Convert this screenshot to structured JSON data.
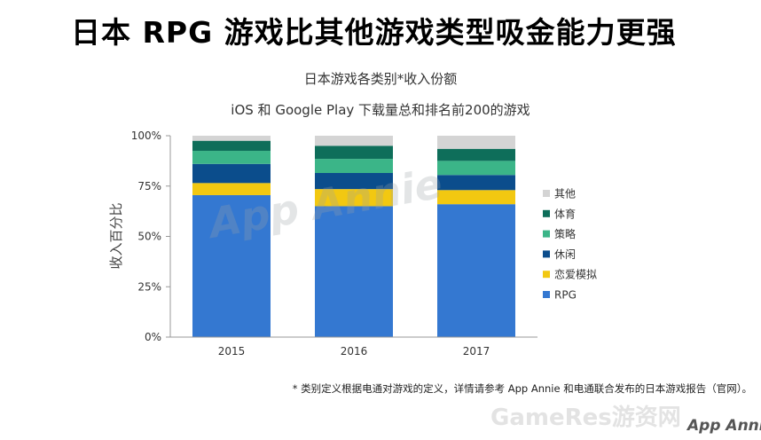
{
  "page": {
    "title": "日本 RPG 游戏比其他游戏类型吸金能力更强",
    "footnote": "* 类别定义根据电通对游戏的定义，详情请参考 App Annie 和电通联合发布的日本游戏报告（官网）。"
  },
  "watermarks": {
    "chart_watermark": "App Annie",
    "gameres": "GameRes游资网",
    "footer_logo": "App Annie"
  },
  "chart_data": {
    "type": "bar",
    "stacked": true,
    "title": "日本游戏各类别*收入份额",
    "subtitle": "iOS 和 Google Play 下载量总和排名前200的游戏",
    "xlabel": "",
    "ylabel": "收入百分比",
    "categories": [
      "2015",
      "2016",
      "2017"
    ],
    "ylim": [
      0,
      100
    ],
    "yticks": [
      0,
      25,
      50,
      75,
      100
    ],
    "ytick_labels": [
      "0%",
      "25%",
      "50%",
      "75%",
      "100%"
    ],
    "grid": false,
    "legend_position": "right",
    "series": [
      {
        "name": "RPG",
        "color": "#3478d1",
        "values": [
          70.5,
          65,
          66
        ]
      },
      {
        "name": "恋爱模拟",
        "color": "#f2c811",
        "values": [
          6,
          8.5,
          7
        ]
      },
      {
        "name": "休闲",
        "color": "#0b4d8c",
        "values": [
          9.5,
          8,
          7.5
        ]
      },
      {
        "name": "策略",
        "color": "#3bb588",
        "values": [
          6.5,
          7,
          7
        ]
      },
      {
        "name": "体育",
        "color": "#0e6e5a",
        "values": [
          5,
          6.5,
          6
        ]
      },
      {
        "name": "其他",
        "color": "#d4d4d4",
        "values": [
          2.5,
          5,
          6.5
        ]
      }
    ]
  }
}
